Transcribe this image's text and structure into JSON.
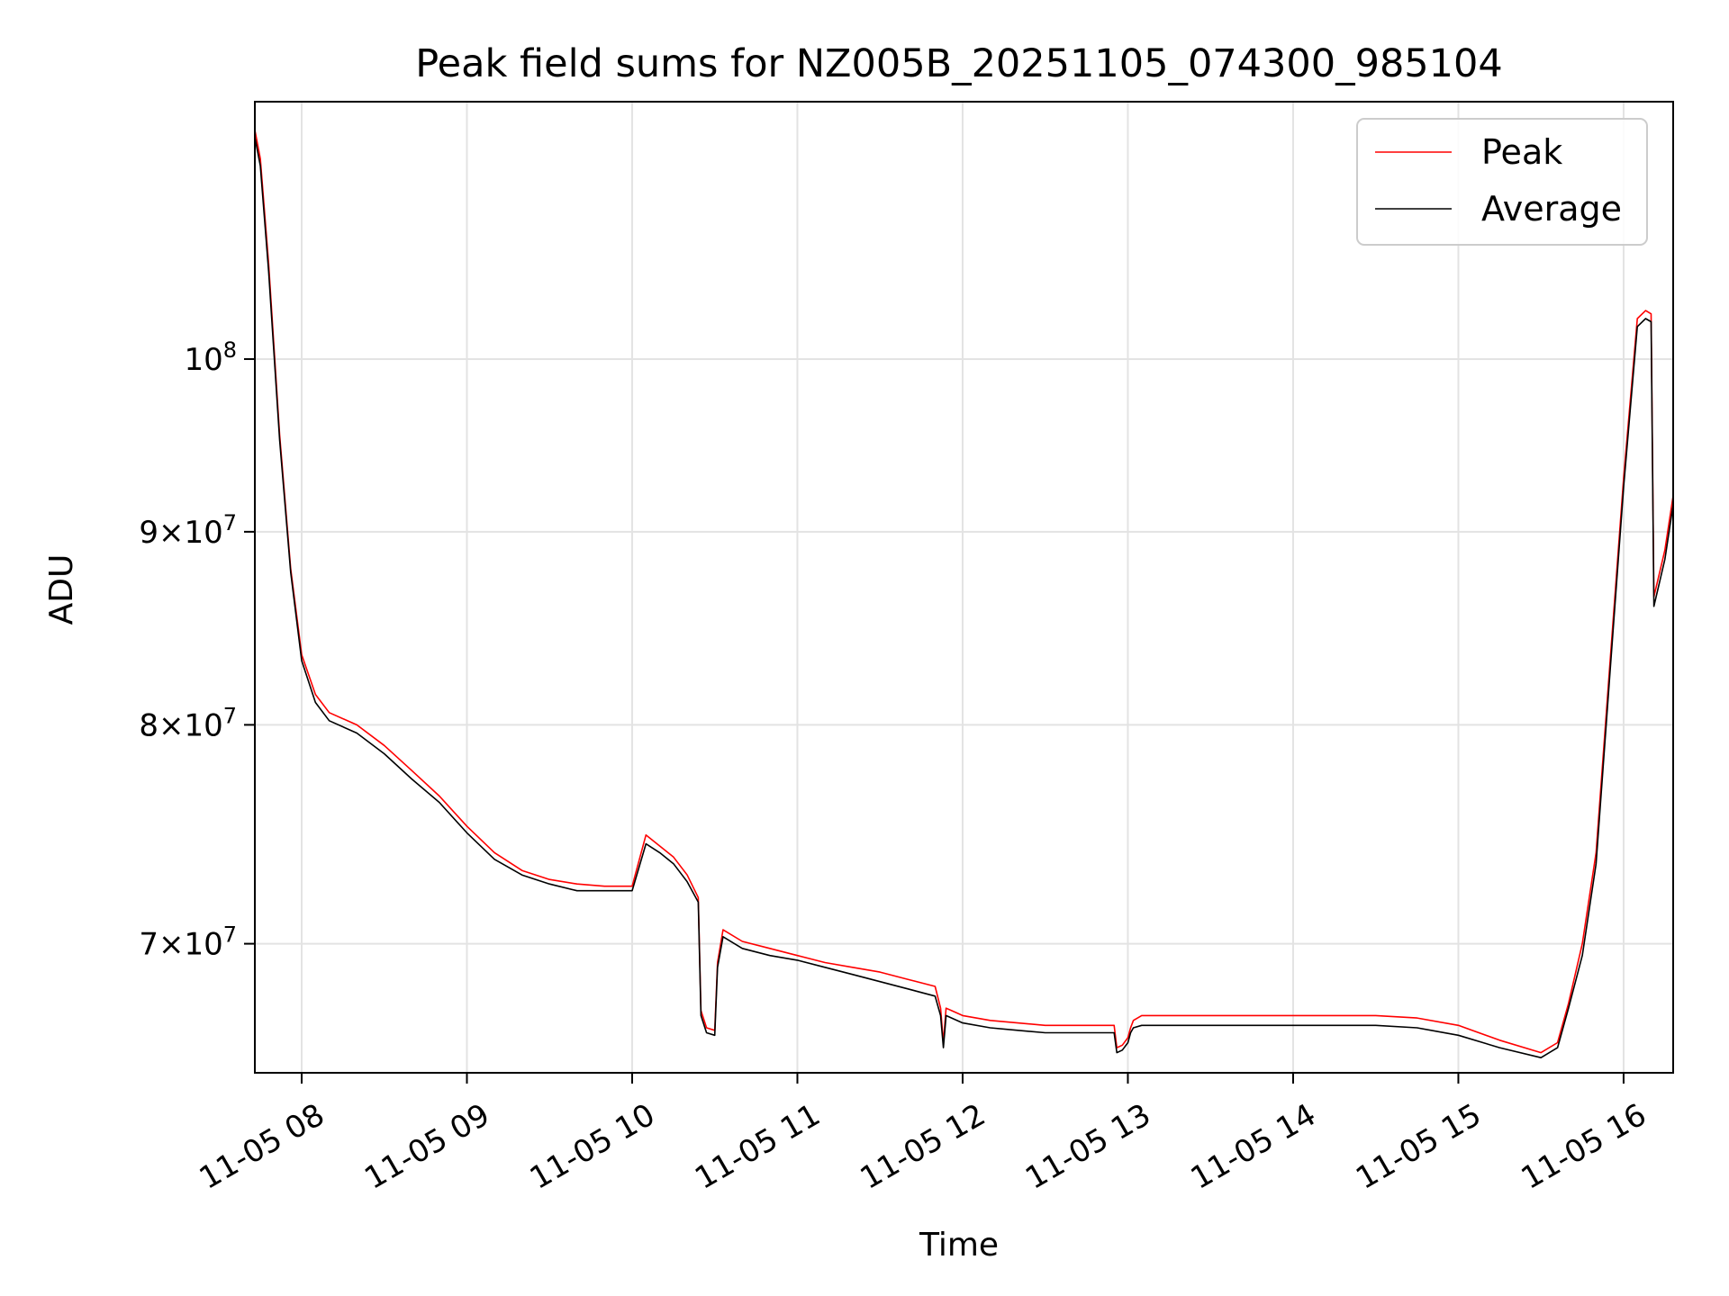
{
  "chart_data": {
    "type": "line",
    "title": "Peak field sums for NZ005B_20251105_074300_985104",
    "xlabel": "Time",
    "ylabel": "ADU",
    "yscale": "log",
    "grid": true,
    "legend_position": "top-right",
    "xlim": [
      "2025-11-05 07:43",
      "2025-11-05 16:18"
    ],
    "ylim": [
      64700000,
      117000000
    ],
    "x_ticks": [
      "11-05 08",
      "11-05 09",
      "11-05 10",
      "11-05 11",
      "11-05 12",
      "11-05 13",
      "11-05 14",
      "11-05 15",
      "11-05 16"
    ],
    "y_ticks": [
      {
        "value": 70000000,
        "mantissa": "7",
        "label": "7 × 10^7"
      },
      {
        "value": 80000000,
        "mantissa": "8",
        "label": "8 × 10^7"
      },
      {
        "value": 90000000,
        "mantissa": "9",
        "label": "9 × 10^7"
      },
      {
        "value": 100000000,
        "mantissa": "",
        "label": "10^8"
      }
    ],
    "x": [
      "07:43",
      "07:45",
      "07:48",
      "07:52",
      "07:56",
      "08:00",
      "08:05",
      "08:10",
      "08:20",
      "08:30",
      "08:40",
      "08:50",
      "09:00",
      "09:10",
      "09:20",
      "09:30",
      "09:40",
      "09:50",
      "10:00",
      "10:05",
      "10:10",
      "10:15",
      "10:20",
      "10:24",
      "10:25",
      "10:27",
      "10:30",
      "10:31",
      "10:33",
      "10:40",
      "10:50",
      "11:00",
      "11:10",
      "11:20",
      "11:30",
      "11:40",
      "11:50",
      "11:52",
      "11:53",
      "11:54",
      "11:56",
      "12:00",
      "12:10",
      "12:20",
      "12:30",
      "12:40",
      "12:50",
      "12:55",
      "12:56",
      "12:58",
      "13:00",
      "13:01",
      "13:02",
      "13:05",
      "13:30",
      "14:00",
      "14:30",
      "14:45",
      "15:00",
      "15:15",
      "15:30",
      "15:36",
      "15:40",
      "15:45",
      "15:50",
      "15:55",
      "16:00",
      "16:05",
      "16:08",
      "16:10",
      "16:11",
      "16:15",
      "16:18"
    ],
    "series": [
      {
        "name": "Peak",
        "color": "#ff0000",
        "values": [
          115000000,
          113000000,
          106000000,
          95500000,
          88000000,
          83500000,
          81500000,
          80600000,
          80000000,
          79000000,
          77800000,
          76600000,
          75200000,
          74000000,
          73200000,
          72800000,
          72600000,
          72500000,
          72500000,
          74800000,
          74300000,
          73800000,
          73000000,
          72000000,
          67200000,
          66500000,
          66400000,
          69200000,
          70600000,
          70100000,
          69800000,
          69500000,
          69200000,
          69000000,
          68800000,
          68500000,
          68200000,
          67300000,
          65900000,
          67300000,
          67200000,
          67000000,
          66800000,
          66700000,
          66600000,
          66600000,
          66600000,
          66600000,
          65700000,
          65800000,
          66100000,
          66500000,
          66800000,
          67000000,
          67000000,
          67000000,
          67000000,
          66900000,
          66600000,
          66000000,
          65500000,
          65900000,
          67500000,
          70000000,
          74000000,
          83000000,
          93000000,
          102500000,
          103000000,
          102800000,
          86500000,
          89000000,
          92000000
        ]
      },
      {
        "name": "Average",
        "color": "#000000",
        "values": [
          114500000,
          112500000,
          105500000,
          95200000,
          87800000,
          83200000,
          81100000,
          80200000,
          79600000,
          78600000,
          77400000,
          76300000,
          74900000,
          73700000,
          73000000,
          72600000,
          72300000,
          72300000,
          72300000,
          74400000,
          74000000,
          73500000,
          72700000,
          71800000,
          67000000,
          66300000,
          66200000,
          69000000,
          70300000,
          69800000,
          69500000,
          69300000,
          69000000,
          68700000,
          68400000,
          68100000,
          67800000,
          67000000,
          65700000,
          67000000,
          66900000,
          66700000,
          66500000,
          66400000,
          66300000,
          66300000,
          66300000,
          66300000,
          65500000,
          65600000,
          65900000,
          66300000,
          66500000,
          66600000,
          66600000,
          66600000,
          66600000,
          66500000,
          66200000,
          65700000,
          65300000,
          65700000,
          67300000,
          69500000,
          73500000,
          82500000,
          92500000,
          102000000,
          102500000,
          102300000,
          86000000,
          88500000,
          91500000
        ]
      }
    ]
  }
}
